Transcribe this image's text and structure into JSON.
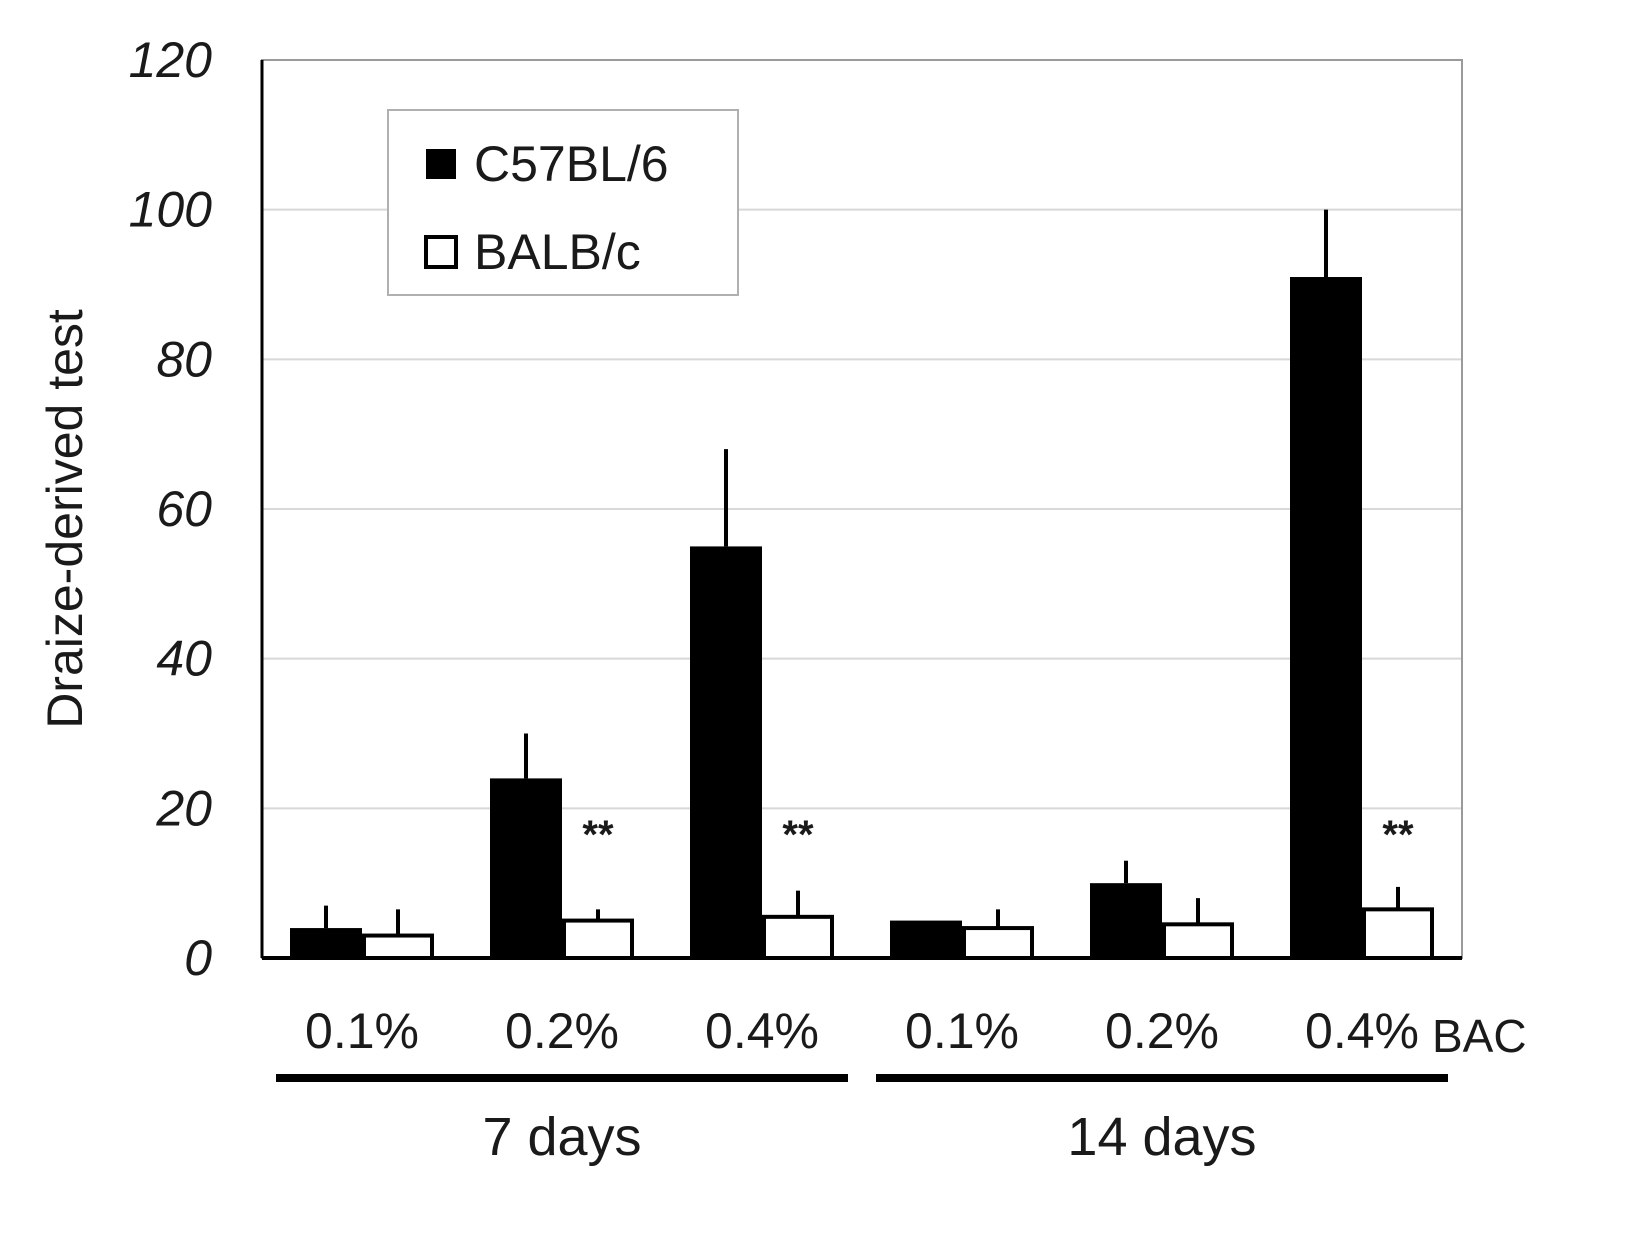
{
  "chart_data": {
    "type": "bar",
    "title": "",
    "ylabel": "Draize-derived test",
    "xlabel": "",
    "ylim": [
      0,
      120
    ],
    "yticks": [
      0,
      20,
      40,
      60,
      80,
      100,
      120
    ],
    "grid": true,
    "legend_position": "top-left",
    "category_suffix": "BAC",
    "categories": [
      "0.1%",
      "0.2%",
      "0.4%",
      "0.1%",
      "0.2%",
      "0.4%"
    ],
    "groups": [
      {
        "label": "7 days",
        "categories": [
          0,
          1,
          2
        ]
      },
      {
        "label": "14 days",
        "categories": [
          3,
          4,
          5
        ]
      }
    ],
    "series": [
      {
        "name": "C57BL/6",
        "fill": "#000000",
        "values": [
          4,
          24,
          55,
          5,
          10,
          91
        ],
        "errors": [
          3,
          6,
          13,
          0,
          3,
          9
        ]
      },
      {
        "name": "BALB/c",
        "fill": "#ffffff",
        "values": [
          3,
          5,
          5.5,
          4,
          4.5,
          6.5
        ],
        "errors": [
          3.5,
          1.5,
          3.5,
          2.5,
          3.5,
          3
        ]
      }
    ],
    "annotations": [
      {
        "category": 1,
        "series": 1,
        "text": "**"
      },
      {
        "category": 2,
        "series": 1,
        "text": "**"
      },
      {
        "category": 5,
        "series": 1,
        "text": "**"
      }
    ]
  }
}
